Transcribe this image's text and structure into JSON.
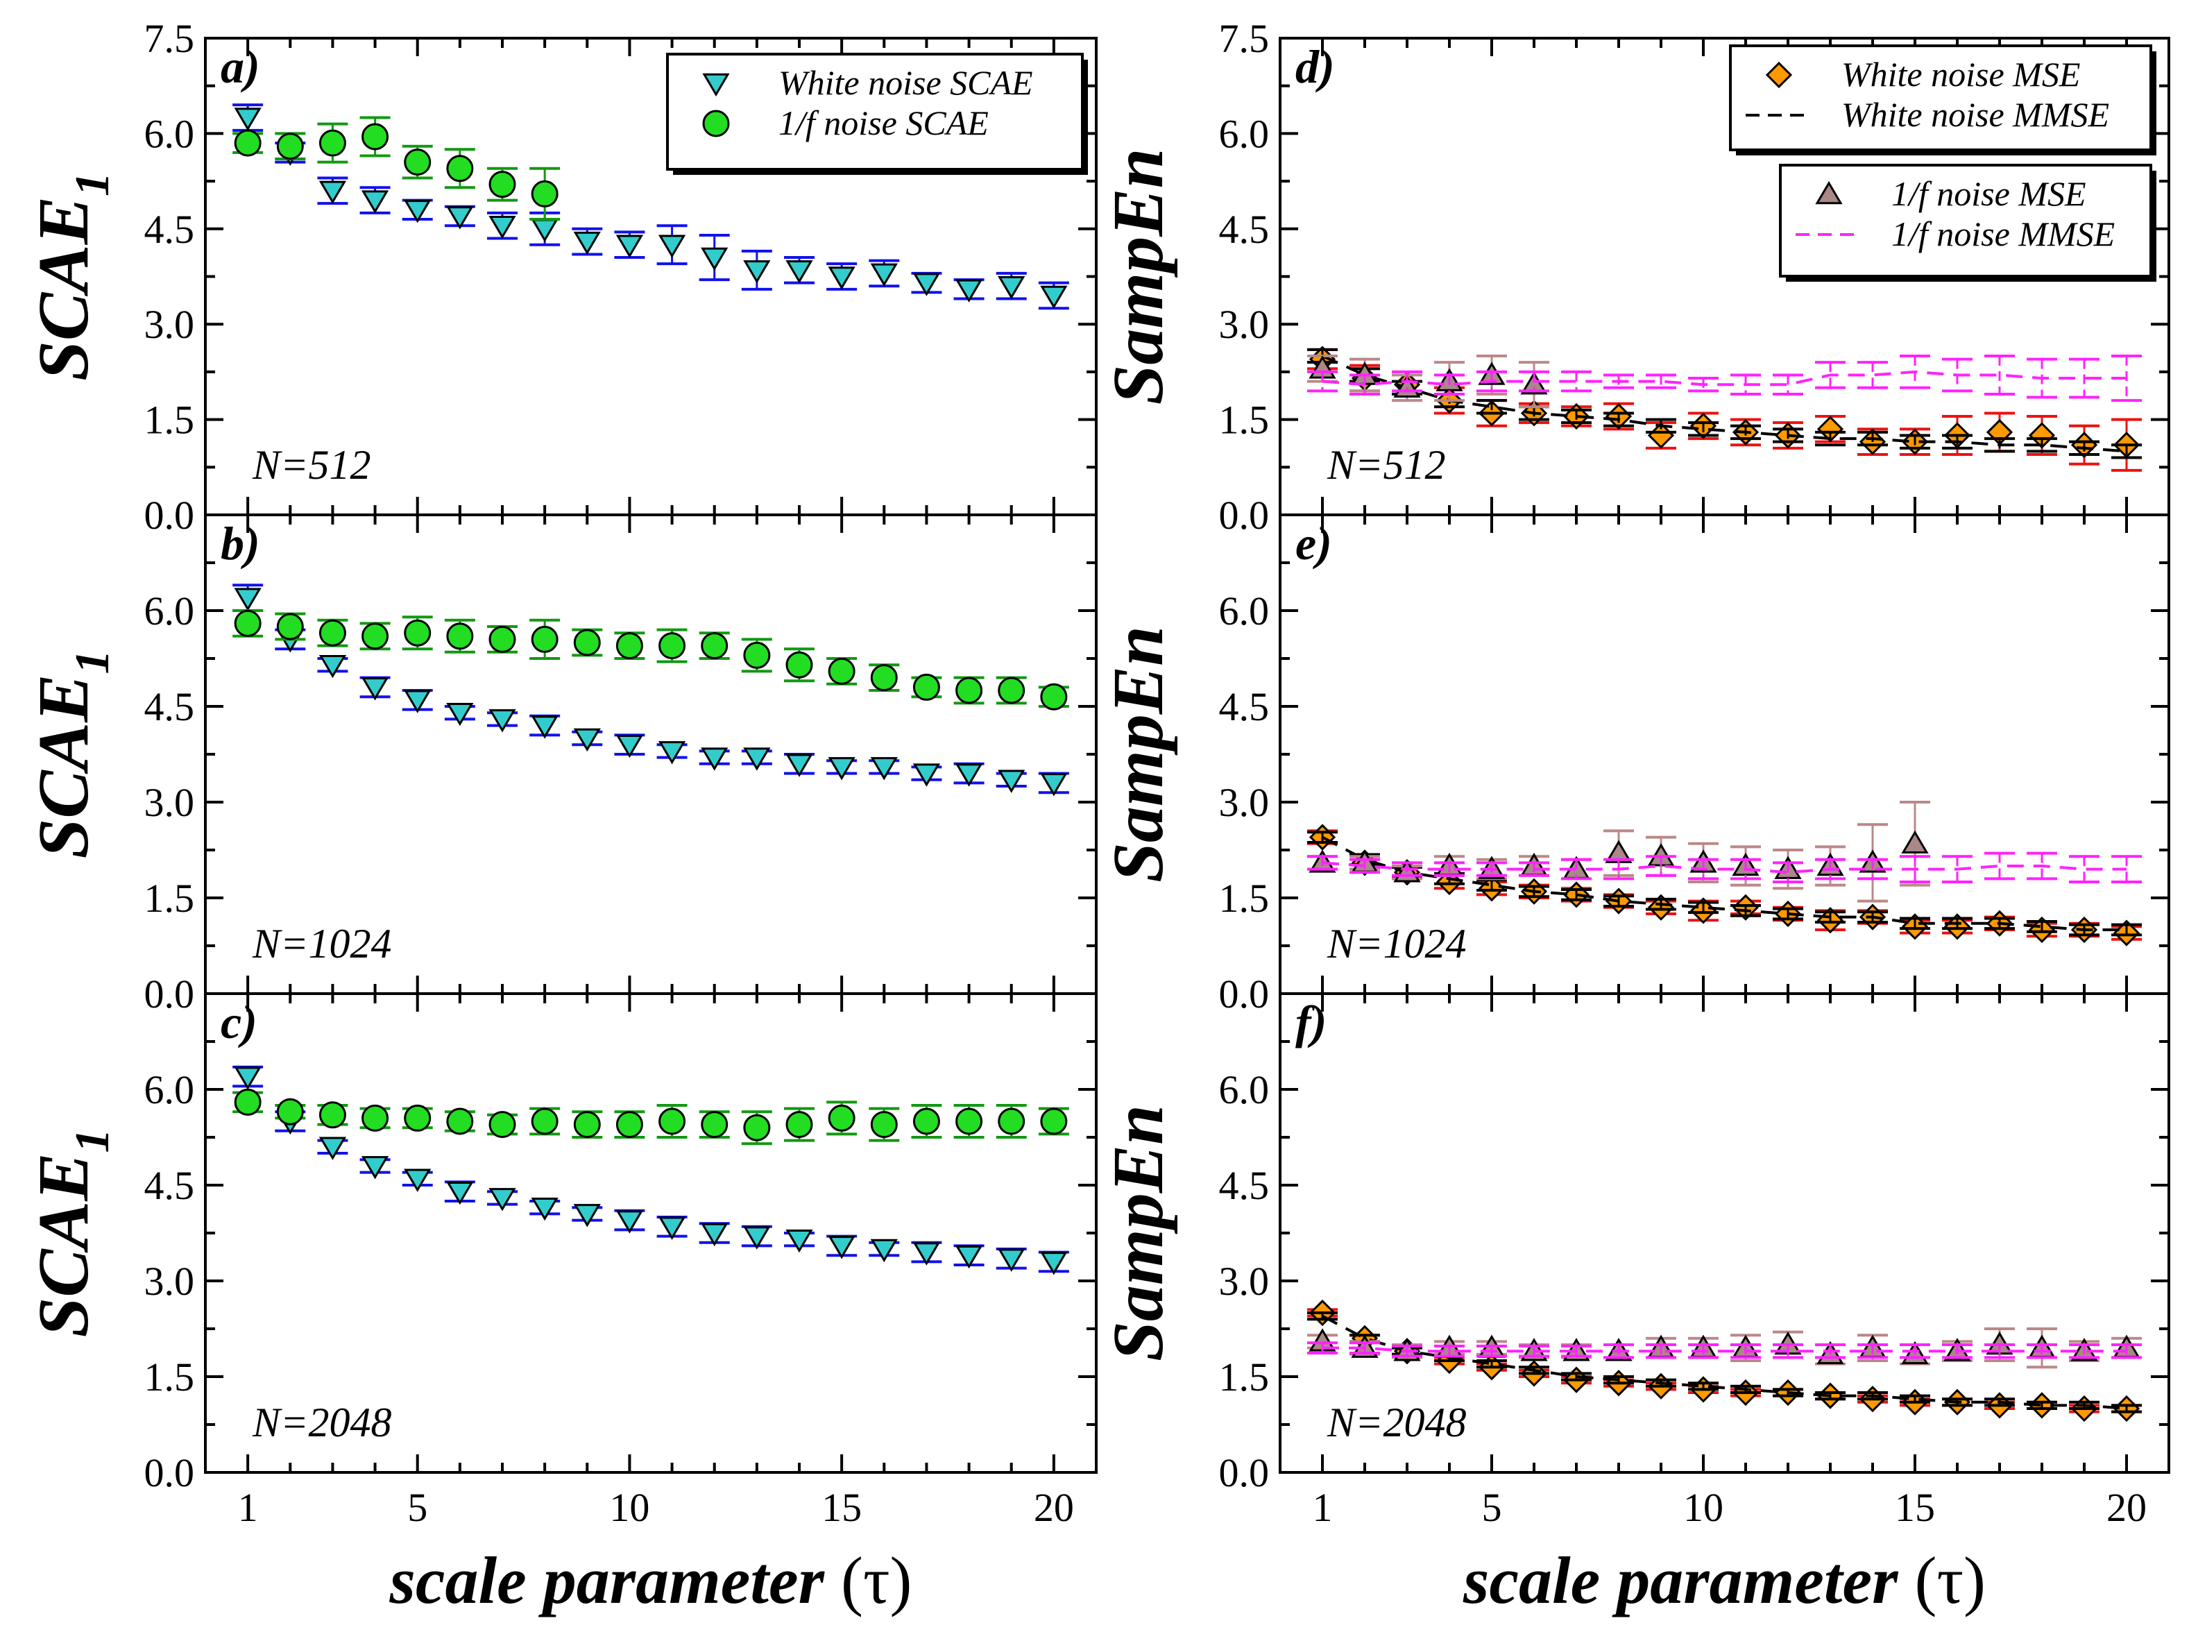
{
  "colors": {
    "white_scae_marker": "#33cccc",
    "white_scae_err": "#1111ee",
    "pink_scae_marker": "#22dd22",
    "pink_scae_err": "#119911",
    "white_mse_marker": "#ff9900",
    "white_mse_err": "#ee1111",
    "white_mmse_line": "#000000",
    "pink_mse_marker": "#aa8888",
    "pink_mse_err": "#bb8888",
    "pink_mmse_line": "#ff22ff"
  },
  "x_axis": {
    "label_main": "scale parameter ",
    "label_sym": "(τ)",
    "range": [
      0,
      21
    ],
    "ticks": [
      1,
      5,
      10,
      15,
      20
    ]
  },
  "y_axis": {
    "range": [
      0,
      7.5
    ],
    "ticks_top": [
      "0.0",
      "1.5",
      "3.0",
      "4.5",
      "6.0",
      "7.5"
    ],
    "ticks_other": [
      "0.0",
      "1.5",
      "3.0",
      "4.5",
      "6.0"
    ],
    "label_left": "SCAE",
    "label_left_sub": "1",
    "label_right": "SampEn"
  },
  "chart_data": [
    {
      "panel": "a)",
      "type": "scatter",
      "n_label": "N=512",
      "ylabel": "SCAE1",
      "legend": [
        "White noise SCAE",
        "1/f noise SCAE"
      ],
      "series": [
        {
          "name": "White noise SCAE",
          "marker": "triangle-down",
          "y": [
            6.25,
            5.7,
            5.1,
            4.95,
            4.8,
            4.7,
            4.55,
            4.5,
            4.3,
            4.25,
            4.25,
            4.05,
            3.85,
            3.85,
            3.75,
            3.8,
            3.65,
            3.55,
            3.6,
            3.45
          ],
          "err": [
            0.2,
            0.15,
            0.2,
            0.2,
            0.15,
            0.15,
            0.2,
            0.25,
            0.2,
            0.2,
            0.3,
            0.35,
            0.3,
            0.2,
            0.2,
            0.2,
            0.15,
            0.15,
            0.2,
            0.2
          ]
        },
        {
          "name": "1/f noise SCAE",
          "marker": "circle",
          "y": [
            5.85,
            5.8,
            5.85,
            5.95,
            5.55,
            5.45,
            5.2,
            5.05
          ],
          "err": [
            0.15,
            0.2,
            0.3,
            0.3,
            0.25,
            0.3,
            0.25,
            0.4
          ]
        }
      ]
    },
    {
      "panel": "b)",
      "type": "scatter",
      "n_label": "N=1024",
      "ylabel": "SCAE1",
      "series": [
        {
          "name": "White noise SCAE",
          "marker": "triangle-down",
          "y": [
            6.2,
            5.55,
            5.15,
            4.8,
            4.6,
            4.4,
            4.3,
            4.2,
            4.0,
            3.9,
            3.8,
            3.7,
            3.7,
            3.6,
            3.55,
            3.55,
            3.45,
            3.45,
            3.35,
            3.3
          ],
          "err": [
            0.2,
            0.15,
            0.1,
            0.15,
            0.15,
            0.1,
            0.1,
            0.15,
            0.1,
            0.15,
            0.1,
            0.1,
            0.1,
            0.15,
            0.1,
            0.1,
            0.1,
            0.15,
            0.1,
            0.15
          ]
        },
        {
          "name": "1/f noise SCAE",
          "marker": "circle",
          "y": [
            5.8,
            5.75,
            5.65,
            5.6,
            5.65,
            5.6,
            5.55,
            5.55,
            5.5,
            5.45,
            5.45,
            5.45,
            5.3,
            5.15,
            5.05,
            4.95,
            4.8,
            4.75,
            4.75,
            4.65
          ],
          "err": [
            0.2,
            0.2,
            0.2,
            0.2,
            0.25,
            0.25,
            0.2,
            0.3,
            0.2,
            0.2,
            0.25,
            0.2,
            0.25,
            0.25,
            0.2,
            0.2,
            0.15,
            0.2,
            0.2,
            0.15
          ]
        }
      ]
    },
    {
      "panel": "c)",
      "type": "scatter",
      "n_label": "N=2048",
      "ylabel": "SCAE1",
      "series": [
        {
          "name": "White noise SCAE",
          "marker": "triangle-down",
          "y": [
            6.2,
            5.5,
            5.1,
            4.8,
            4.6,
            4.4,
            4.3,
            4.15,
            4.05,
            3.95,
            3.85,
            3.75,
            3.7,
            3.65,
            3.55,
            3.5,
            3.45,
            3.4,
            3.35,
            3.3
          ],
          "err": [
            0.15,
            0.15,
            0.1,
            0.1,
            0.1,
            0.15,
            0.1,
            0.1,
            0.1,
            0.15,
            0.15,
            0.15,
            0.15,
            0.1,
            0.15,
            0.1,
            0.15,
            0.15,
            0.15,
            0.15
          ]
        },
        {
          "name": "1/f noise SCAE",
          "marker": "circle",
          "y": [
            5.8,
            5.65,
            5.6,
            5.55,
            5.55,
            5.5,
            5.45,
            5.5,
            5.45,
            5.45,
            5.5,
            5.45,
            5.4,
            5.45,
            5.55,
            5.45,
            5.5,
            5.5,
            5.5,
            5.5
          ],
          "err": [
            0.15,
            0.1,
            0.15,
            0.15,
            0.15,
            0.15,
            0.15,
            0.2,
            0.2,
            0.2,
            0.25,
            0.2,
            0.25,
            0.25,
            0.25,
            0.25,
            0.25,
            0.25,
            0.25,
            0.2
          ]
        }
      ]
    },
    {
      "panel": "d)",
      "type": "scatter",
      "n_label": "N=512",
      "ylabel": "SampEn",
      "legend": [
        "White noise MSE",
        "White noise MMSE",
        "1/f noise MSE",
        "1/f noise MMSE"
      ],
      "series": [
        {
          "name": "White noise MSE",
          "marker": "diamond",
          "y": [
            2.45,
            2.15,
            2.05,
            1.8,
            1.6,
            1.6,
            1.55,
            1.55,
            1.25,
            1.4,
            1.3,
            1.25,
            1.35,
            1.15,
            1.15,
            1.25,
            1.3,
            1.25,
            1.1,
            1.1
          ],
          "err": [
            0.15,
            0.2,
            0.15,
            0.2,
            0.2,
            0.15,
            0.15,
            0.2,
            0.2,
            0.2,
            0.2,
            0.2,
            0.2,
            0.2,
            0.2,
            0.3,
            0.3,
            0.3,
            0.3,
            0.4
          ]
        },
        {
          "name": "White noise MMSE",
          "marker": "line-dash",
          "y": [
            2.5,
            2.2,
            2.0,
            1.8,
            1.7,
            1.6,
            1.55,
            1.5,
            1.4,
            1.35,
            1.3,
            1.25,
            1.2,
            1.2,
            1.15,
            1.15,
            1.1,
            1.1,
            1.05,
            1.0
          ],
          "err": [
            0.1,
            0.1,
            0.1,
            0.1,
            0.1,
            0.1,
            0.1,
            0.1,
            0.1,
            0.1,
            0.1,
            0.1,
            0.1,
            0.1,
            0.1,
            0.1,
            0.1,
            0.1,
            0.1,
            0.1
          ]
        },
        {
          "name": "1/f noise MSE",
          "marker": "triangle-up",
          "y": [
            2.3,
            2.2,
            2.0,
            2.1,
            2.2,
            2.05
          ],
          "err": [
            0.2,
            0.25,
            0.2,
            0.3,
            0.3,
            0.35
          ]
        },
        {
          "name": "1/f noise MMSE",
          "marker": "line-dash",
          "y": [
            2.1,
            2.05,
            2.1,
            2.05,
            2.1,
            2.1,
            2.1,
            2.1,
            2.1,
            2.05,
            2.05,
            2.05,
            2.2,
            2.2,
            2.25,
            2.2,
            2.2,
            2.15,
            2.15,
            2.15
          ],
          "err": [
            0.15,
            0.15,
            0.15,
            0.15,
            0.15,
            0.15,
            0.15,
            0.1,
            0.1,
            0.1,
            0.15,
            0.15,
            0.2,
            0.2,
            0.25,
            0.25,
            0.3,
            0.3,
            0.3,
            0.35
          ]
        }
      ]
    },
    {
      "panel": "e)",
      "type": "scatter",
      "n_label": "N=1024",
      "ylabel": "SampEn",
      "series": [
        {
          "name": "White noise MSE",
          "marker": "diamond",
          "y": [
            2.45,
            2.05,
            1.9,
            1.75,
            1.65,
            1.6,
            1.55,
            1.45,
            1.35,
            1.3,
            1.35,
            1.25,
            1.15,
            1.2,
            1.05,
            1.05,
            1.1,
            1.0,
            1.0,
            0.95
          ],
          "err": [
            0.1,
            0.1,
            0.1,
            0.1,
            0.1,
            0.1,
            0.1,
            0.1,
            0.1,
            0.15,
            0.1,
            0.1,
            0.15,
            0.1,
            0.1,
            0.1,
            0.1,
            0.1,
            0.1,
            0.1
          ]
        },
        {
          "name": "White noise MMSE",
          "marker": "line-dash",
          "y": [
            2.45,
            2.1,
            1.9,
            1.8,
            1.7,
            1.6,
            1.55,
            1.45,
            1.4,
            1.35,
            1.3,
            1.25,
            1.2,
            1.2,
            1.1,
            1.1,
            1.1,
            1.05,
            1.0,
            1.0
          ],
          "err": [
            0.08,
            0.08,
            0.08,
            0.08,
            0.08,
            0.08,
            0.08,
            0.08,
            0.08,
            0.08,
            0.08,
            0.08,
            0.08,
            0.08,
            0.08,
            0.08,
            0.08,
            0.08,
            0.08,
            0.08
          ]
        },
        {
          "name": "1/f noise MSE",
          "marker": "triangle-up",
          "y": [
            2.05,
            2.05,
            1.9,
            2.0,
            1.95,
            2.0,
            1.95,
            2.2,
            2.15,
            2.05,
            2.0,
            1.95,
            2.0,
            2.05,
            2.35
          ],
          "err": [
            0.1,
            0.1,
            0.1,
            0.15,
            0.15,
            0.15,
            0.15,
            0.35,
            0.3,
            0.3,
            0.3,
            0.3,
            0.3,
            0.6,
            0.65
          ]
        },
        {
          "name": "1/f noise MMSE",
          "marker": "line-dash",
          "y": [
            2.05,
            2.0,
            1.95,
            1.95,
            1.95,
            1.95,
            1.95,
            1.95,
            2.0,
            1.95,
            1.95,
            1.9,
            1.95,
            1.95,
            1.95,
            1.95,
            2.0,
            2.0,
            1.95,
            1.95
          ],
          "err": [
            0.1,
            0.1,
            0.1,
            0.1,
            0.1,
            0.1,
            0.15,
            0.15,
            0.15,
            0.15,
            0.15,
            0.15,
            0.15,
            0.15,
            0.2,
            0.2,
            0.2,
            0.2,
            0.2,
            0.2
          ]
        }
      ]
    },
    {
      "panel": "f)",
      "type": "scatter",
      "n_label": "N=2048",
      "ylabel": "SampEn",
      "series": [
        {
          "name": "White noise MSE",
          "marker": "diamond",
          "y": [
            2.5,
            2.1,
            1.9,
            1.75,
            1.65,
            1.55,
            1.45,
            1.4,
            1.35,
            1.3,
            1.25,
            1.25,
            1.2,
            1.15,
            1.1,
            1.1,
            1.05,
            1.05,
            1.0,
            1.0
          ],
          "err": [
            0.05,
            0.05,
            0.05,
            0.05,
            0.05,
            0.05,
            0.05,
            0.05,
            0.05,
            0.05,
            0.05,
            0.05,
            0.05,
            0.05,
            0.05,
            0.05,
            0.05,
            0.05,
            0.05,
            0.05
          ]
        },
        {
          "name": "White noise MMSE",
          "marker": "line-dash",
          "y": [
            2.45,
            2.1,
            1.9,
            1.8,
            1.7,
            1.6,
            1.5,
            1.45,
            1.4,
            1.35,
            1.3,
            1.25,
            1.2,
            1.2,
            1.15,
            1.1,
            1.1,
            1.05,
            1.05,
            1.0
          ],
          "err": [
            0.05,
            0.05,
            0.05,
            0.05,
            0.05,
            0.05,
            0.05,
            0.05,
            0.05,
            0.05,
            0.05,
            0.05,
            0.05,
            0.05,
            0.05,
            0.05,
            0.05,
            0.05,
            0.05,
            0.05
          ]
        },
        {
          "name": "1/f noise MSE",
          "marker": "triangle-up",
          "y": [
            2.05,
            1.95,
            1.9,
            1.95,
            1.95,
            1.9,
            1.9,
            1.9,
            1.95,
            1.95,
            1.95,
            2.0,
            1.85,
            1.95,
            1.85,
            1.9,
            2.0,
            1.95,
            1.9,
            1.95
          ],
          "err": [
            0.1,
            0.1,
            0.1,
            0.1,
            0.1,
            0.1,
            0.1,
            0.1,
            0.15,
            0.15,
            0.2,
            0.2,
            0.15,
            0.2,
            0.15,
            0.15,
            0.25,
            0.3,
            0.15,
            0.15
          ]
        },
        {
          "name": "1/f noise MMSE",
          "marker": "line-dash",
          "y": [
            1.95,
            1.95,
            1.9,
            1.9,
            1.9,
            1.9,
            1.9,
            1.9,
            1.9,
            1.9,
            1.9,
            1.9,
            1.9,
            1.9,
            1.9,
            1.9,
            1.9,
            1.9,
            1.9,
            1.9
          ],
          "err": [
            0.08,
            0.08,
            0.08,
            0.08,
            0.08,
            0.08,
            0.08,
            0.1,
            0.1,
            0.1,
            0.1,
            0.1,
            0.1,
            0.1,
            0.1,
            0.1,
            0.1,
            0.1,
            0.1,
            0.1
          ]
        }
      ]
    }
  ]
}
